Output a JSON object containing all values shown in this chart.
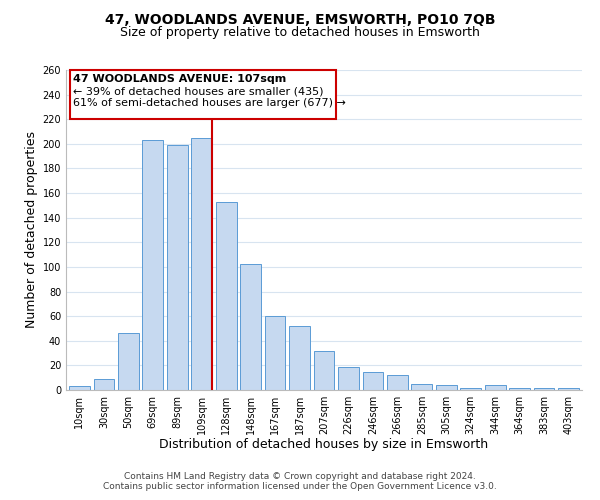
{
  "title": "47, WOODLANDS AVENUE, EMSWORTH, PO10 7QB",
  "subtitle": "Size of property relative to detached houses in Emsworth",
  "xlabel": "Distribution of detached houses by size in Emsworth",
  "ylabel": "Number of detached properties",
  "bar_labels": [
    "10sqm",
    "30sqm",
    "50sqm",
    "69sqm",
    "89sqm",
    "109sqm",
    "128sqm",
    "148sqm",
    "167sqm",
    "187sqm",
    "207sqm",
    "226sqm",
    "246sqm",
    "266sqm",
    "285sqm",
    "305sqm",
    "324sqm",
    "344sqm",
    "364sqm",
    "383sqm",
    "403sqm"
  ],
  "bar_values": [
    3,
    9,
    46,
    203,
    199,
    205,
    153,
    102,
    60,
    52,
    32,
    19,
    15,
    12,
    5,
    4,
    2,
    4,
    2,
    2,
    2
  ],
  "bar_color": "#c6d9f0",
  "bar_edge_color": "#5a9bd5",
  "highlight_bar_index": 5,
  "highlight_line_color": "#cc0000",
  "ylim": [
    0,
    260
  ],
  "yticks": [
    0,
    20,
    40,
    60,
    80,
    100,
    120,
    140,
    160,
    180,
    200,
    220,
    240,
    260
  ],
  "annotation_line1": "47 WOODLANDS AVENUE: 107sqm",
  "annotation_line2": "← 39% of detached houses are smaller (435)",
  "annotation_line3": "61% of semi-detached houses are larger (677) →",
  "annotation_box_color": "#ffffff",
  "annotation_box_edge": "#cc0000",
  "footer_line1": "Contains HM Land Registry data © Crown copyright and database right 2024.",
  "footer_line2": "Contains public sector information licensed under the Open Government Licence v3.0.",
  "background_color": "#ffffff",
  "grid_color": "#d8e4f0",
  "title_fontsize": 10,
  "subtitle_fontsize": 9,
  "axis_label_fontsize": 9,
  "tick_fontsize": 7,
  "annotation_fontsize": 8,
  "footer_fontsize": 6.5
}
